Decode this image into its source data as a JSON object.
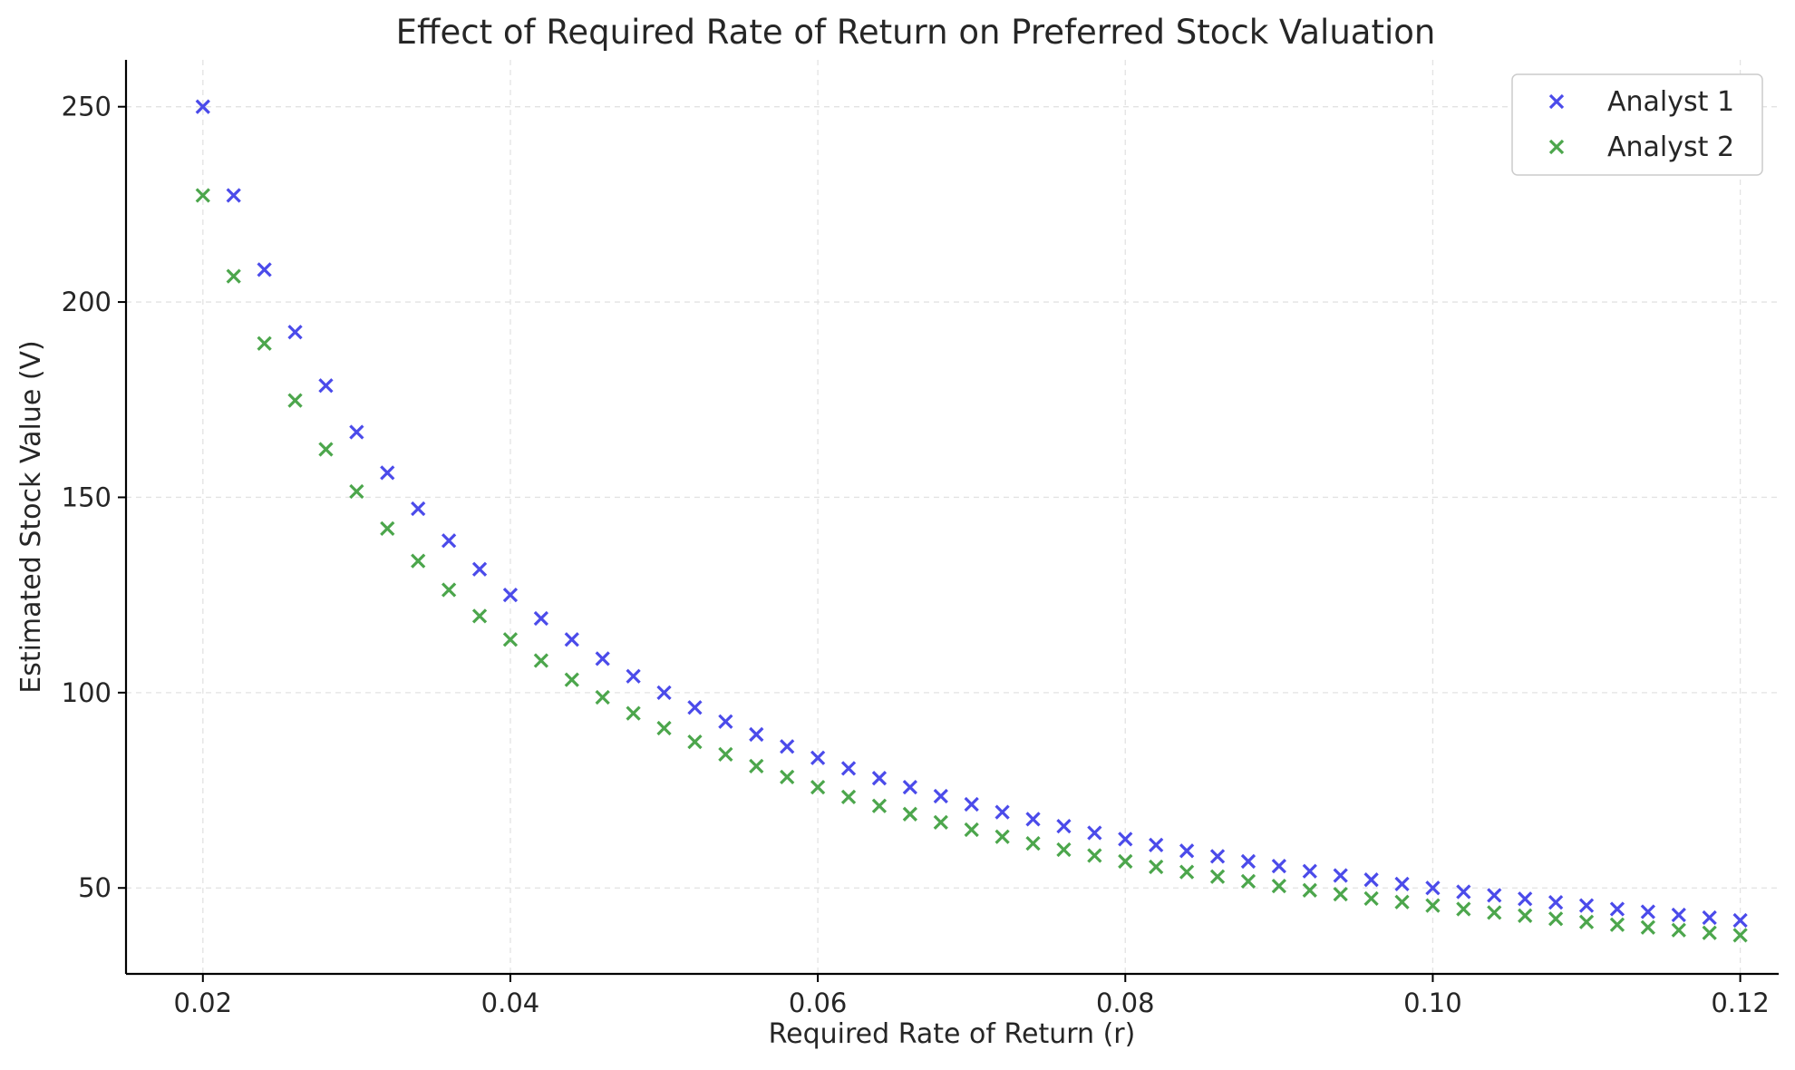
{
  "chart_data": {
    "type": "scatter",
    "title": "Effect of Required Rate of Return on Preferred Stock Valuation",
    "xlabel": "Required Rate of Return (r)",
    "ylabel": "Estimated Stock Value (V)",
    "xlim": [
      0.015,
      0.1225
    ],
    "ylim": [
      28,
      262
    ],
    "xticks": [
      0.02,
      0.04,
      0.06,
      0.08,
      0.1,
      0.12
    ],
    "xtick_labels": [
      "0.02",
      "0.04",
      "0.06",
      "0.08",
      "0.10",
      "0.12"
    ],
    "yticks": [
      50,
      100,
      150,
      200,
      250
    ],
    "ytick_labels": [
      "50",
      "100",
      "150",
      "200",
      "250"
    ],
    "grid": true,
    "legend_position": "top-right",
    "marker": "x",
    "x": [
      0.02,
      0.022,
      0.024,
      0.026,
      0.028,
      0.03,
      0.032,
      0.034,
      0.036,
      0.038,
      0.04,
      0.042,
      0.044,
      0.046,
      0.048,
      0.05,
      0.052,
      0.054,
      0.056,
      0.058,
      0.06,
      0.062,
      0.064,
      0.066,
      0.068,
      0.07,
      0.072,
      0.074,
      0.076,
      0.078,
      0.08,
      0.082,
      0.084,
      0.086,
      0.088,
      0.09,
      0.092,
      0.094,
      0.096,
      0.098,
      0.1,
      0.102,
      0.104,
      0.106,
      0.108,
      0.11,
      0.112,
      0.114,
      0.116,
      0.118,
      0.12
    ],
    "series": [
      {
        "name": "Analyst 1",
        "color": "#4b4bea",
        "values": [
          250.0,
          227.3,
          208.3,
          192.3,
          178.6,
          166.7,
          156.3,
          147.1,
          138.9,
          131.6,
          125.0,
          119.0,
          113.6,
          108.7,
          104.2,
          100.0,
          96.2,
          92.6,
          89.3,
          86.2,
          83.3,
          80.6,
          78.1,
          75.8,
          73.5,
          71.4,
          69.4,
          67.6,
          65.8,
          64.1,
          62.5,
          61.0,
          59.5,
          58.1,
          56.8,
          55.6,
          54.3,
          53.2,
          52.1,
          51.0,
          50.0,
          49.0,
          48.1,
          47.2,
          46.3,
          45.5,
          44.6,
          43.9,
          43.1,
          42.4,
          41.7
        ]
      },
      {
        "name": "Analyst 2",
        "color": "#4ca64c",
        "values": [
          227.3,
          206.6,
          189.4,
          174.8,
          162.3,
          151.5,
          142.0,
          133.7,
          126.3,
          119.6,
          113.6,
          108.2,
          103.3,
          98.8,
          94.7,
          90.9,
          87.4,
          84.2,
          81.2,
          78.4,
          75.8,
          73.3,
          71.0,
          68.9,
          66.8,
          64.9,
          63.1,
          61.4,
          59.8,
          58.3,
          56.8,
          55.4,
          54.1,
          52.9,
          51.7,
          50.5,
          49.4,
          48.4,
          47.3,
          46.4,
          45.5,
          44.6,
          43.7,
          42.9,
          42.1,
          41.3,
          40.6,
          39.9,
          39.2,
          38.5,
          37.9
        ]
      }
    ]
  }
}
